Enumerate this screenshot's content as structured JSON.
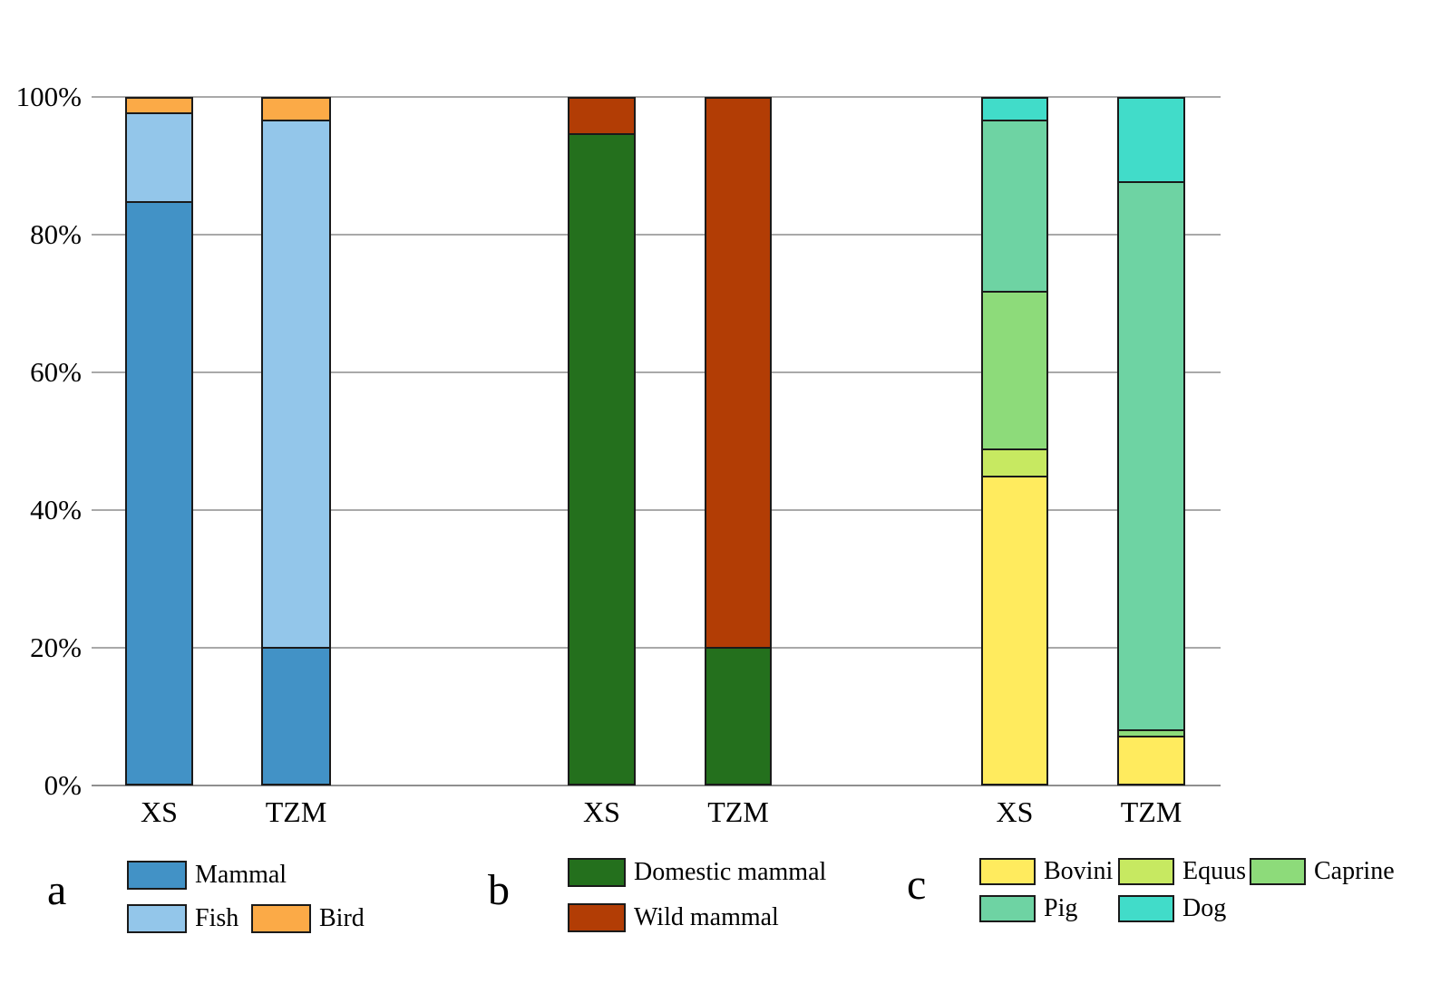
{
  "figure": {
    "background": "#ffffff",
    "grid_color": "#a9a9a9",
    "axis_color": "#8f8f8f",
    "bar_border_color": "#1a1a1a",
    "text_color": "#000000"
  },
  "y_axis": {
    "tick_labels": [
      "100%",
      "80%",
      "60%",
      "40%",
      "20%",
      "0%"
    ],
    "range": [
      0,
      100
    ],
    "grid": true
  },
  "chart_data": [
    {
      "panel_label": "a",
      "type": "bar",
      "stacked": true,
      "orientation": "vertical",
      "categories": [
        "XS",
        "TZM"
      ],
      "series": [
        {
          "name": "Mammal",
          "color": "#4292c6",
          "values": [
            85,
            20
          ]
        },
        {
          "name": "Fish",
          "color": "#93c6ea",
          "values": [
            13,
            77
          ]
        },
        {
          "name": "Bird",
          "color": "#fbaa47",
          "values": [
            2,
            3
          ]
        }
      ],
      "ylim": [
        0,
        100
      ],
      "legend_position": "below",
      "legend_rows": [
        [
          "Mammal"
        ],
        [
          "Fish",
          "Bird"
        ]
      ]
    },
    {
      "panel_label": "b",
      "type": "bar",
      "stacked": true,
      "orientation": "vertical",
      "categories": [
        "XS",
        "TZM"
      ],
      "series": [
        {
          "name": "Domestic mammal",
          "color": "#24701d",
          "values": [
            95,
            20
          ]
        },
        {
          "name": "Wild mammal",
          "color": "#b23d05",
          "values": [
            5,
            80
          ]
        }
      ],
      "ylim": [
        0,
        100
      ],
      "legend_position": "below",
      "legend_rows": [
        [
          "Domestic mammal"
        ],
        [
          "Wild mammal"
        ]
      ]
    },
    {
      "panel_label": "c",
      "type": "bar",
      "stacked": true,
      "orientation": "vertical",
      "categories": [
        "XS",
        "TZM"
      ],
      "series": [
        {
          "name": "Bovini",
          "color": "#ffeb5e",
          "values": [
            45,
            7
          ]
        },
        {
          "name": "Equus",
          "color": "#c7e961",
          "values": [
            4,
            0
          ]
        },
        {
          "name": "Caprine",
          "color": "#8ddb7a",
          "values": [
            23,
            1
          ]
        },
        {
          "name": "Pig",
          "color": "#6ed3a3",
          "values": [
            25,
            80
          ]
        },
        {
          "name": "Dog",
          "color": "#41dcc9",
          "values": [
            3,
            12
          ]
        }
      ],
      "ylim": [
        0,
        100
      ],
      "legend_position": "below",
      "legend_rows": [
        [
          "Bovini",
          "Equus",
          "Caprine"
        ],
        [
          "Pig",
          "Dog"
        ]
      ]
    }
  ]
}
